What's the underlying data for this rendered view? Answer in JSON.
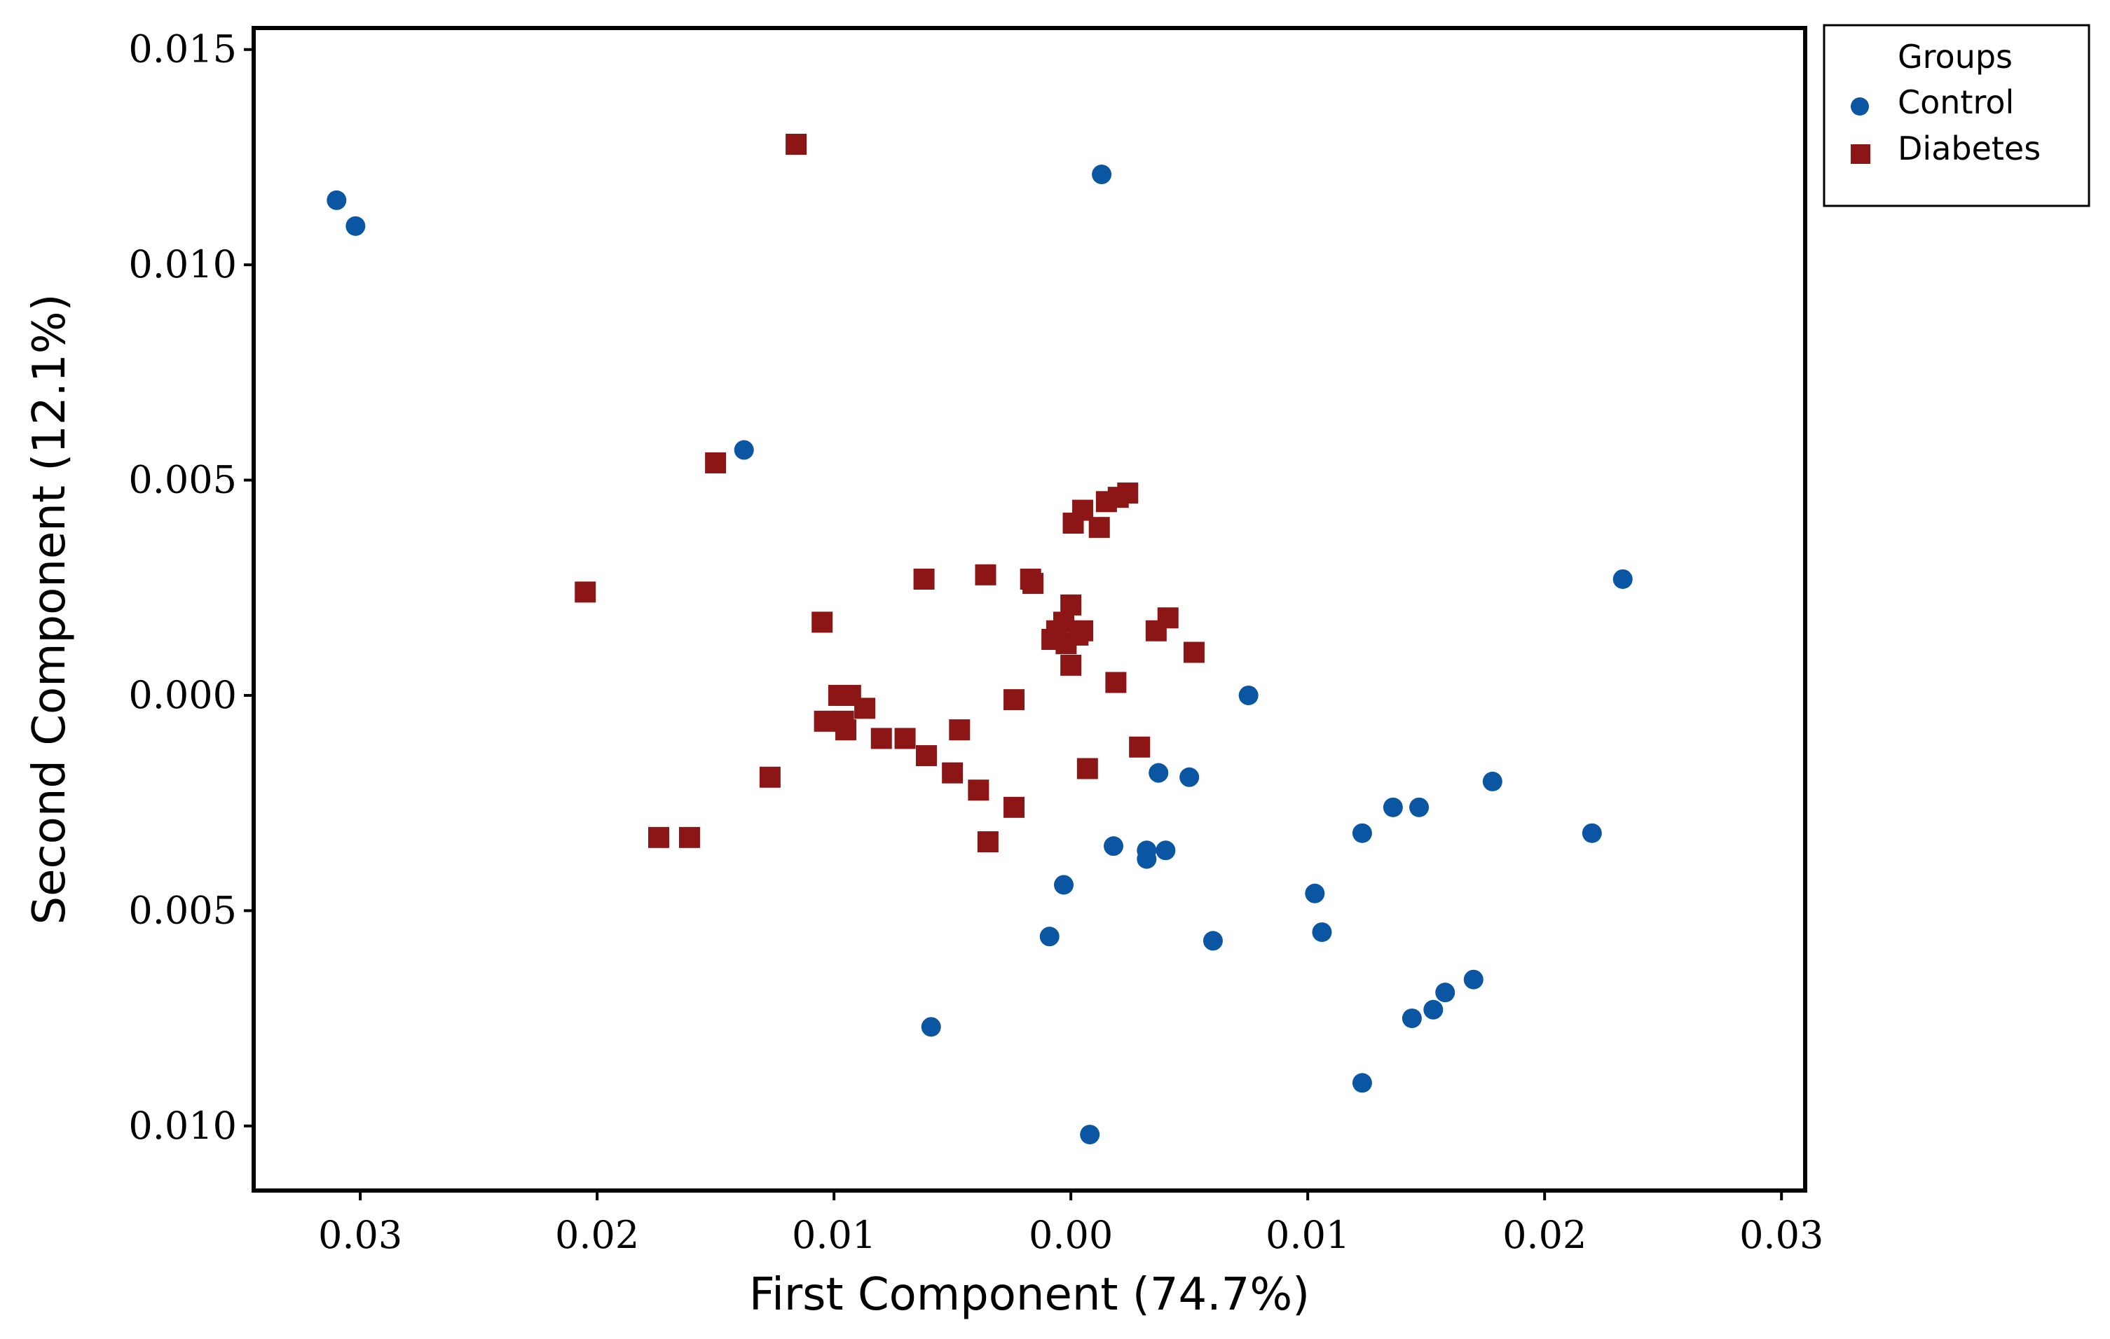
{
  "chart_data": {
    "type": "scatter",
    "xlabel": "First Component (74.7%)",
    "ylabel": "Second Component (12.1%)",
    "xlim": [
      -0.0345,
      0.031
    ],
    "ylim": [
      -0.0115,
      0.0155
    ],
    "x_ticks": [
      -0.03,
      -0.02,
      -0.01,
      0.0,
      0.01,
      0.02,
      0.03
    ],
    "x_tick_labels": [
      "0.03",
      "0.02",
      "0.01",
      "0.00",
      "0.01",
      "0.02",
      "0.03"
    ],
    "y_ticks": [
      0.015,
      0.01,
      0.005,
      0.0,
      -0.005,
      -0.01
    ],
    "y_tick_labels": [
      "0.015",
      "0.010",
      "0.005",
      "0.000",
      "0.005",
      "0.010"
    ],
    "grid": false,
    "legend": {
      "title": "Groups",
      "position": "top-right outside"
    },
    "series": [
      {
        "name": "Control",
        "marker": "circle",
        "color": "#0b56a3",
        "points": [
          [
            -0.031,
            0.0115
          ],
          [
            -0.0302,
            0.0109
          ],
          [
            -0.0138,
            0.0057
          ],
          [
            0.0013,
            0.0121
          ],
          [
            0.0233,
            0.0027
          ],
          [
            0.0075,
            0.0
          ],
          [
            0.0037,
            -0.0018
          ],
          [
            0.005,
            -0.0019
          ],
          [
            0.0178,
            -0.002
          ],
          [
            0.0136,
            -0.0026
          ],
          [
            0.0147,
            -0.0026
          ],
          [
            0.0123,
            -0.0032
          ],
          [
            0.022,
            -0.0032
          ],
          [
            0.0018,
            -0.0035
          ],
          [
            0.0032,
            -0.0036
          ],
          [
            0.004,
            -0.0036
          ],
          [
            0.0032,
            -0.0038
          ],
          [
            -0.0003,
            -0.0044
          ],
          [
            0.0103,
            -0.0046
          ],
          [
            0.0106,
            -0.0055
          ],
          [
            -0.0009,
            -0.0056
          ],
          [
            0.006,
            -0.0057
          ],
          [
            0.017,
            -0.0066
          ],
          [
            0.0158,
            -0.0069
          ],
          [
            0.0153,
            -0.0073
          ],
          [
            0.0144,
            -0.0075
          ],
          [
            -0.0059,
            -0.0077
          ],
          [
            0.0123,
            -0.009
          ],
          [
            0.0008,
            -0.0102
          ]
        ]
      },
      {
        "name": "Diabetes",
        "marker": "square",
        "color": "#8c1515",
        "points": [
          [
            -0.0116,
            0.0128
          ],
          [
            -0.015,
            0.0054
          ],
          [
            -0.0205,
            0.0024
          ],
          [
            0.0001,
            0.004
          ],
          [
            0.0005,
            0.0043
          ],
          [
            0.0012,
            0.0039
          ],
          [
            0.0015,
            0.0045
          ],
          [
            0.002,
            0.0046
          ],
          [
            0.0024,
            0.0047
          ],
          [
            -0.0062,
            0.0027
          ],
          [
            -0.0036,
            0.0028
          ],
          [
            -0.0017,
            0.0027
          ],
          [
            -0.0016,
            0.0026
          ],
          [
            0.0,
            0.0021
          ],
          [
            -0.0105,
            0.0017
          ],
          [
            -0.0003,
            0.0017
          ],
          [
            -0.0006,
            0.0015
          ],
          [
            0.0005,
            0.0015
          ],
          [
            0.0003,
            0.0014
          ],
          [
            0.0036,
            0.0015
          ],
          [
            0.0041,
            0.0018
          ],
          [
            -0.0008,
            0.0013
          ],
          [
            -0.0002,
            0.0012
          ],
          [
            0.0052,
            0.001
          ],
          [
            0.0,
            0.0007
          ],
          [
            0.0019,
            0.0003
          ],
          [
            -0.0098,
            0.0
          ],
          [
            -0.0093,
            0.0
          ],
          [
            -0.0087,
            -0.0003
          ],
          [
            -0.0096,
            -0.0006
          ],
          [
            -0.0104,
            -0.0006
          ],
          [
            -0.0095,
            -0.0008
          ],
          [
            -0.0024,
            -0.0001
          ],
          [
            -0.0047,
            -0.0008
          ],
          [
            -0.008,
            -0.001
          ],
          [
            -0.007,
            -0.001
          ],
          [
            0.0029,
            -0.0012
          ],
          [
            -0.0061,
            -0.0014
          ],
          [
            -0.0127,
            -0.0019
          ],
          [
            0.0007,
            -0.0017
          ],
          [
            -0.005,
            -0.0018
          ],
          [
            -0.0039,
            -0.0022
          ],
          [
            -0.0024,
            -0.0026
          ],
          [
            -0.0174,
            -0.0033
          ],
          [
            -0.0161,
            -0.0033
          ],
          [
            -0.0035,
            -0.0034
          ]
        ]
      }
    ]
  }
}
